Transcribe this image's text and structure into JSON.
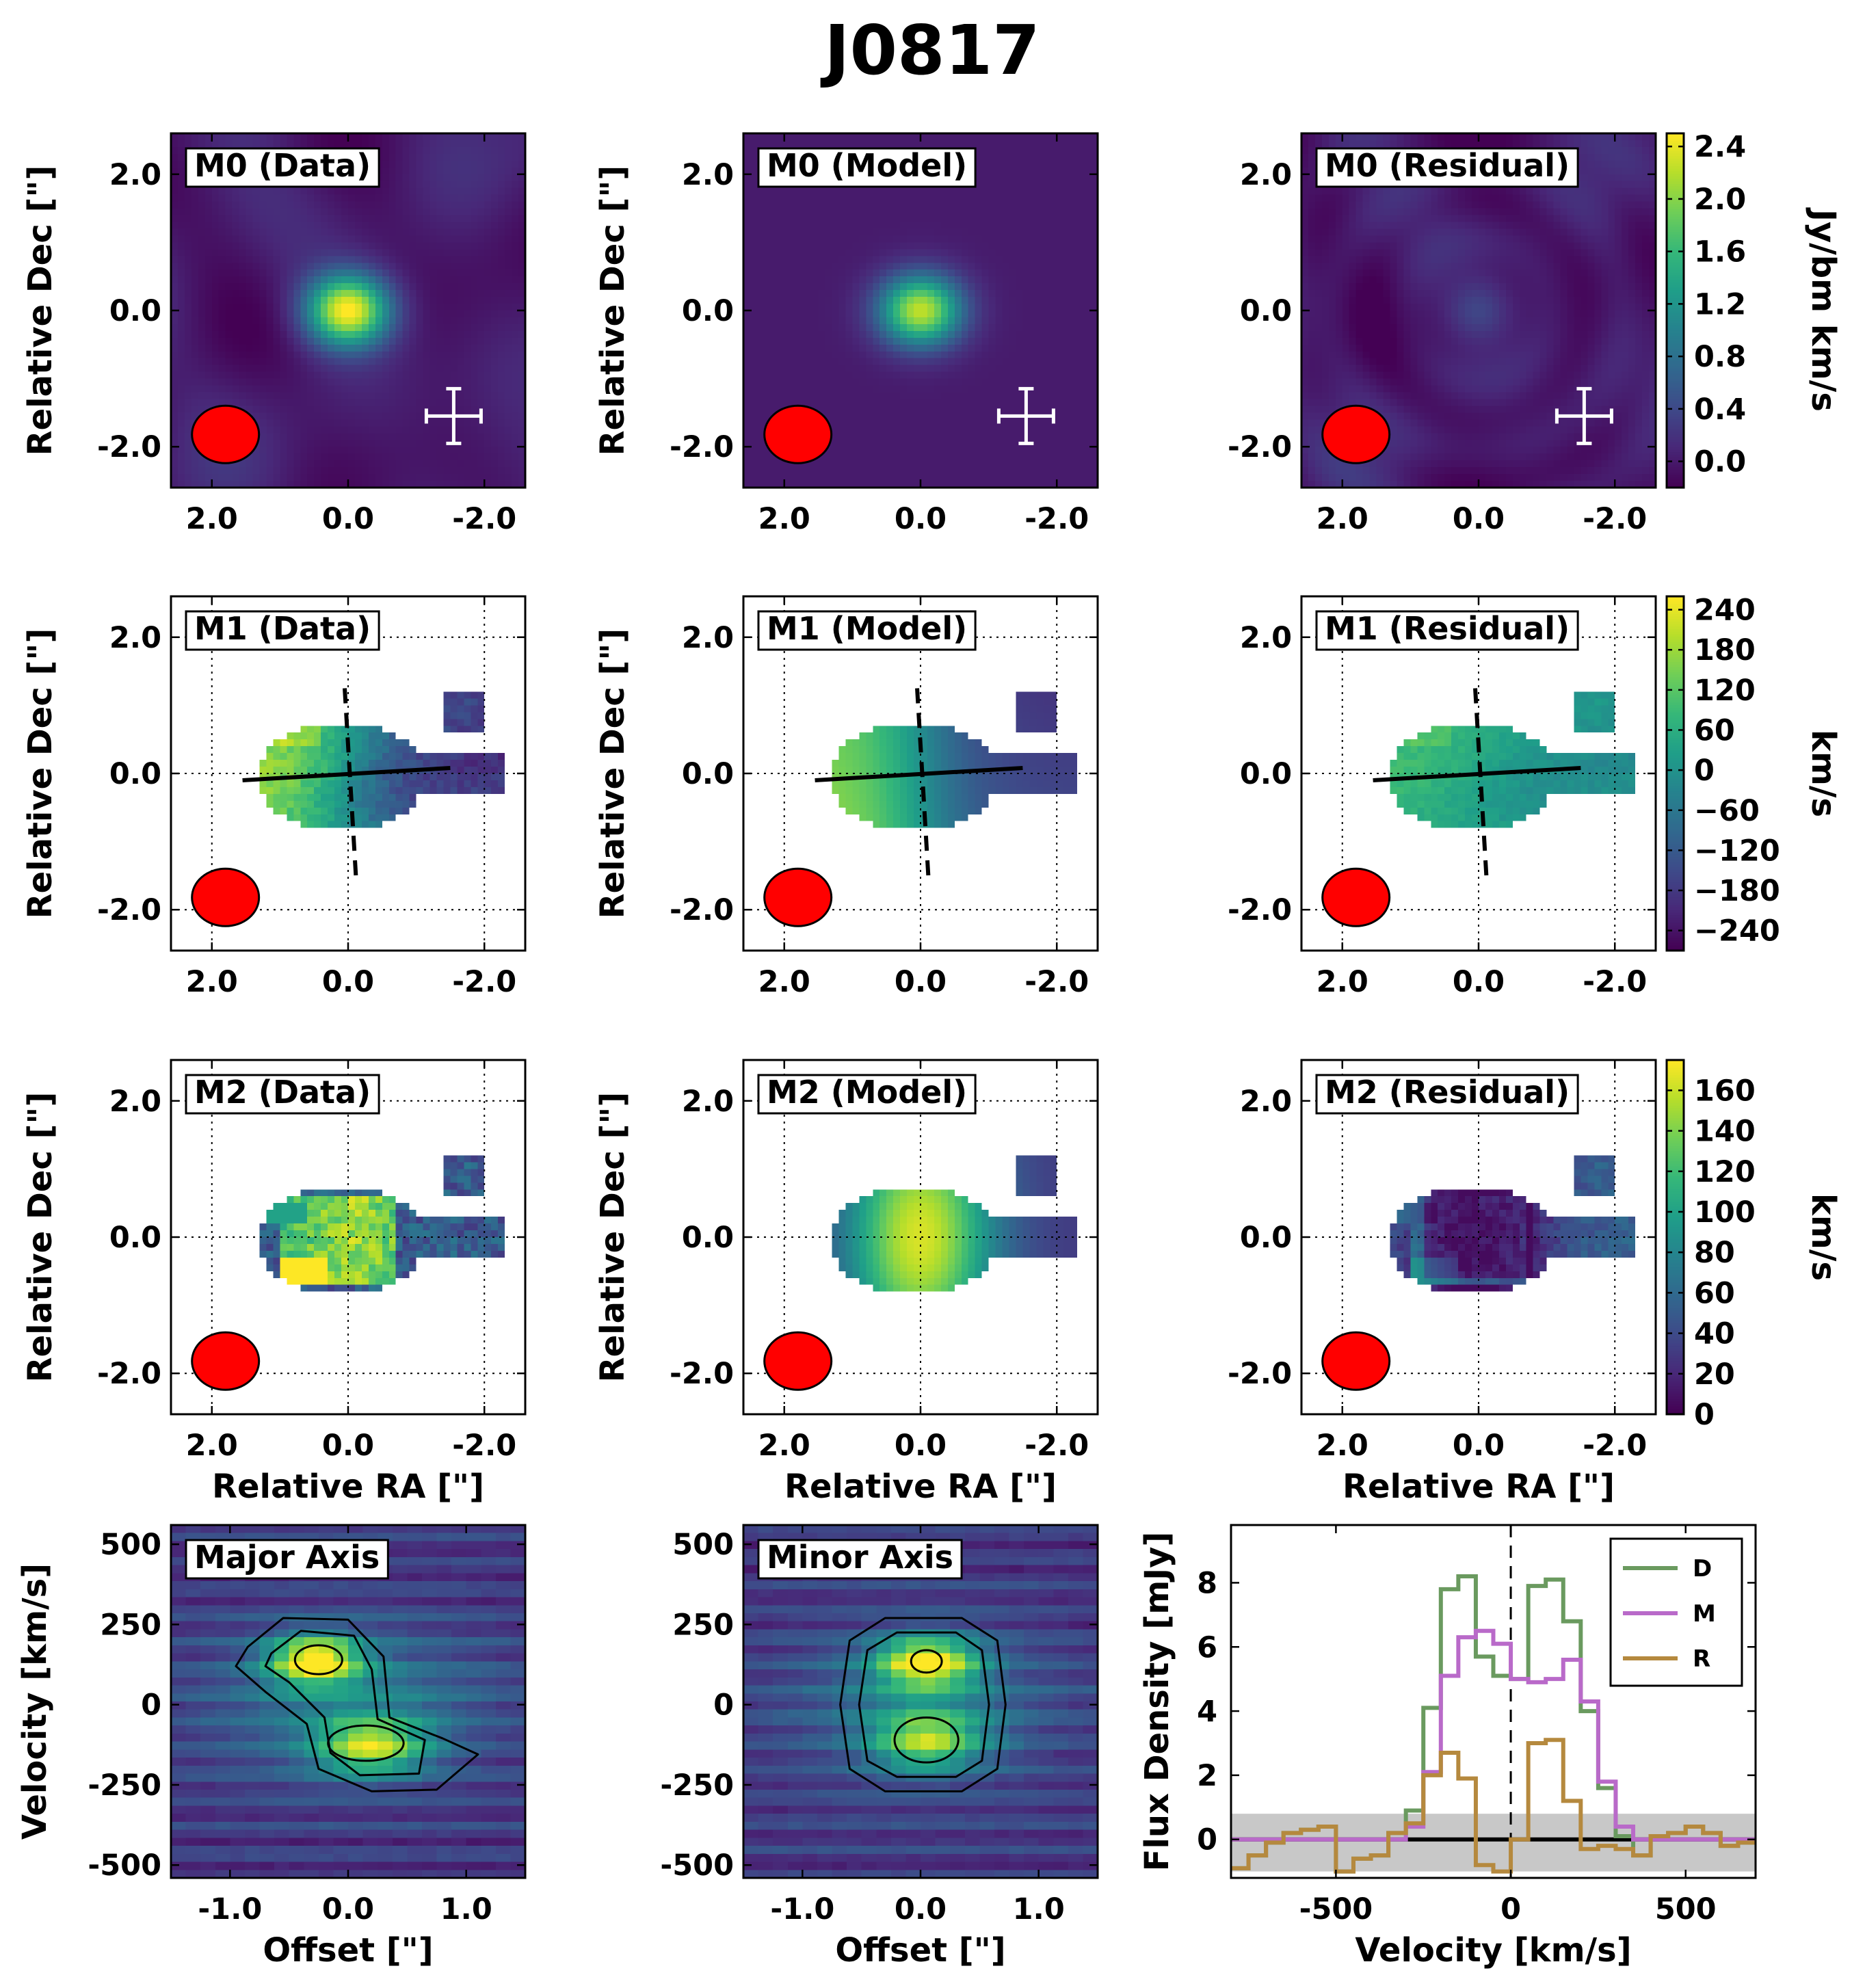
{
  "chart_data": {
    "title": "J0817",
    "type": "heatmap",
    "colors": {
      "viridis": [
        "#440154",
        "#482878",
        "#3e4a89",
        "#31688e",
        "#26828e",
        "#1f9e89",
        "#35b779",
        "#6ece58",
        "#b5de2b",
        "#fde725"
      ],
      "beam": "#ff0000",
      "data_line": "#6a9a5f",
      "model_line": "#b96ac9",
      "residual_line": "#b5893e",
      "noise_band": "#c8c8c8"
    },
    "moment_rows": [
      {
        "id": "m0",
        "colorbar_label": "Jy/bm km/s",
        "colorbar_ticks": [
          "2.4",
          "2.0",
          "1.6",
          "1.2",
          "0.8",
          "0.4",
          "0.0"
        ],
        "vmin": -0.2,
        "vmax": 2.5,
        "panels": [
          {
            "label": "M0 (Data)",
            "kind": "m0",
            "variant": "data"
          },
          {
            "label": "M0 (Model)",
            "kind": "m0",
            "variant": "model"
          },
          {
            "label": "M0 (Residual)",
            "kind": "m0",
            "variant": "residual"
          }
        ]
      },
      {
        "id": "m1",
        "colorbar_label": "km/s",
        "colorbar_ticks": [
          "240",
          "180",
          "120",
          "60",
          "0",
          "−60",
          "−120",
          "−180",
          "−240"
        ],
        "vmin": -270,
        "vmax": 260,
        "panels": [
          {
            "label": "M1 (Data)",
            "kind": "m1",
            "variant": "data"
          },
          {
            "label": "M1 (Model)",
            "kind": "m1",
            "variant": "model"
          },
          {
            "label": "M1 (Residual)",
            "kind": "m1",
            "variant": "residual"
          }
        ]
      },
      {
        "id": "m2",
        "colorbar_label": "km/s",
        "colorbar_ticks": [
          "160",
          "140",
          "120",
          "100",
          "80",
          "60",
          "40",
          "20",
          "0"
        ],
        "vmin": 0,
        "vmax": 175,
        "panels": [
          {
            "label": "M2 (Data)",
            "kind": "m2",
            "variant": "data"
          },
          {
            "label": "M2 (Model)",
            "kind": "m2",
            "variant": "model"
          },
          {
            "label": "M2 (Residual)",
            "kind": "m2",
            "variant": "residual"
          }
        ]
      }
    ],
    "moment_axes": {
      "xlabel": "Relative RA [\"]",
      "ylabel": "Relative Dec [\"]",
      "x_ticks": [
        "2.0",
        "0.0",
        "-2.0"
      ],
      "y_ticks": [
        "2.0",
        "0.0",
        "-2.0"
      ],
      "xlim": [
        2.6,
        -2.6
      ],
      "ylim": [
        -2.6,
        2.6
      ]
    },
    "pv": {
      "xlabel": "Offset [\"]",
      "ylabel": "Velocity [km/s]",
      "x_ticks": [
        "-1.0",
        "0.0",
        "1.0"
      ],
      "y_ticks": [
        "500",
        "250",
        "0",
        "-250",
        "-500"
      ],
      "xlim": [
        -1.5,
        1.5
      ],
      "ylim": [
        -540,
        560
      ],
      "panels": [
        {
          "label": "Major Axis",
          "kind": "major"
        },
        {
          "label": "Minor Axis",
          "kind": "minor"
        }
      ]
    },
    "spectrum": {
      "type": "step",
      "xlabel": "Velocity [km/s]",
      "ylabel": "Flux Density [mJy]",
      "x_ticks": [
        "-500",
        "0",
        "500"
      ],
      "y_ticks": [
        "8",
        "6",
        "4",
        "2",
        "0"
      ],
      "xlim": [
        -800,
        700
      ],
      "ylim": [
        -1.2,
        9.8
      ],
      "noise_band": [
        -1.0,
        0.8
      ],
      "bin_edges": [
        -800,
        -750,
        -700,
        -650,
        -600,
        -550,
        -500,
        -450,
        -400,
        -350,
        -300,
        -250,
        -200,
        -150,
        -100,
        -50,
        0,
        50,
        100,
        150,
        200,
        250,
        300,
        350,
        400,
        450,
        500,
        550,
        600,
        650,
        700
      ],
      "series": [
        {
          "name": "D",
          "values": [
            -0.9,
            -0.5,
            -0.1,
            0.2,
            0.3,
            0.4,
            -1.0,
            -0.6,
            -0.5,
            0.2,
            0.9,
            4.1,
            7.8,
            8.2,
            5.7,
            5.1,
            5.0,
            7.9,
            8.1,
            6.8,
            4.0,
            1.6,
            0.1,
            -0.5,
            0.1,
            0.2,
            0.4,
            0.2,
            -0.2,
            -0.1
          ]
        },
        {
          "name": "M",
          "values": [
            0,
            0,
            0,
            0,
            0,
            0,
            0,
            0,
            0,
            0,
            0.4,
            2.1,
            5.1,
            6.3,
            6.5,
            6.1,
            5.0,
            4.9,
            5.0,
            5.6,
            4.3,
            1.8,
            0.4,
            0,
            0,
            0,
            0,
            0,
            0,
            0
          ]
        },
        {
          "name": "R",
          "values": [
            -0.9,
            -0.5,
            -0.1,
            0.2,
            0.3,
            0.4,
            -1.0,
            -0.6,
            -0.5,
            0.2,
            0.5,
            2.0,
            2.7,
            1.9,
            -0.8,
            -1.0,
            0.0,
            3.0,
            3.1,
            1.2,
            -0.3,
            -0.2,
            -0.3,
            -0.5,
            0.1,
            0.2,
            0.4,
            0.2,
            -0.2,
            -0.1
          ]
        }
      ]
    }
  }
}
